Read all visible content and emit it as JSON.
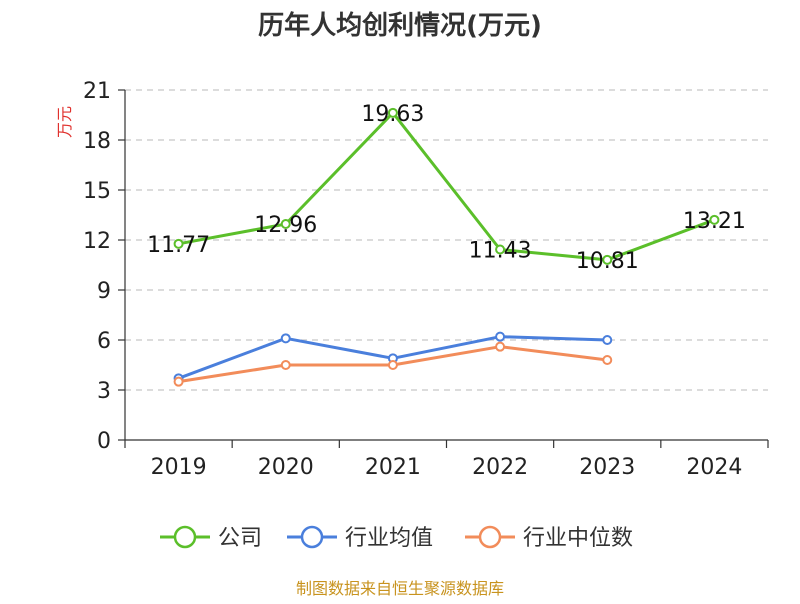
{
  "chart_data": {
    "type": "line",
    "title": "历年人均创利情况(万元)",
    "ylabel": "万元",
    "xlabel": "",
    "categories": [
      "2019",
      "2020",
      "2021",
      "2022",
      "2023",
      "2024"
    ],
    "ylim": [
      0,
      21
    ],
    "yticks": [
      0,
      3,
      6,
      9,
      12,
      15,
      18,
      21
    ],
    "grid": true,
    "legend_position": "bottom",
    "series": [
      {
        "name": "公司",
        "color": "#5bbf2a",
        "values": [
          11.77,
          12.96,
          19.63,
          11.43,
          10.81,
          13.21
        ],
        "labels": [
          "11.77",
          "12.96",
          "19.63",
          "11.43",
          "10.81",
          "13.21"
        ]
      },
      {
        "name": "行业均值",
        "color": "#4a7fdc",
        "values": [
          3.7,
          6.1,
          4.9,
          6.2,
          6.0,
          null
        ]
      },
      {
        "name": "行业中位数",
        "color": "#f28c5a",
        "values": [
          3.5,
          4.5,
          4.5,
          5.6,
          4.8,
          null
        ]
      }
    ],
    "source": "制图数据来自恒生聚源数据库"
  }
}
